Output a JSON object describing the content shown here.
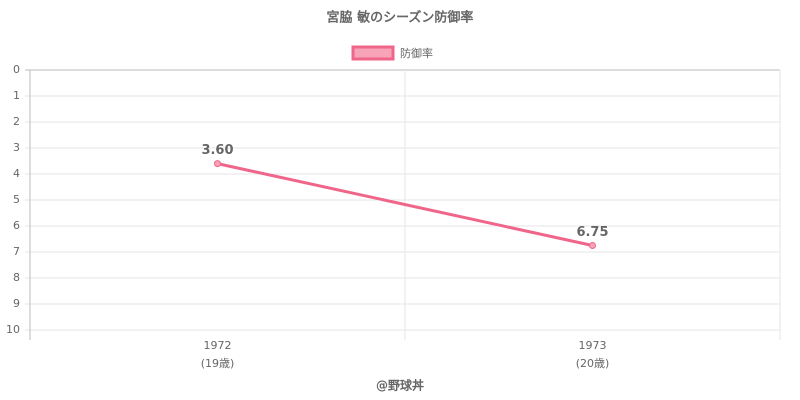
{
  "chart_data": {
    "type": "line",
    "title": "宮脇 敏のシーズン防御率",
    "categories": [
      "1972",
      "1973"
    ],
    "category_sublabels": [
      "(19歳)",
      "(20歳)"
    ],
    "series": [
      {
        "name": "防御率",
        "color": "#f0668a",
        "values": [
          3.6,
          6.75
        ],
        "value_labels": [
          "3.60",
          "6.75"
        ]
      }
    ],
    "ylim": [
      0,
      10
    ],
    "yticks": [
      0,
      1,
      2,
      3,
      4,
      5,
      6,
      7,
      8,
      9,
      10
    ],
    "y_reversed": true,
    "grid": true,
    "legend": "top",
    "x_label": "@野球丼"
  }
}
